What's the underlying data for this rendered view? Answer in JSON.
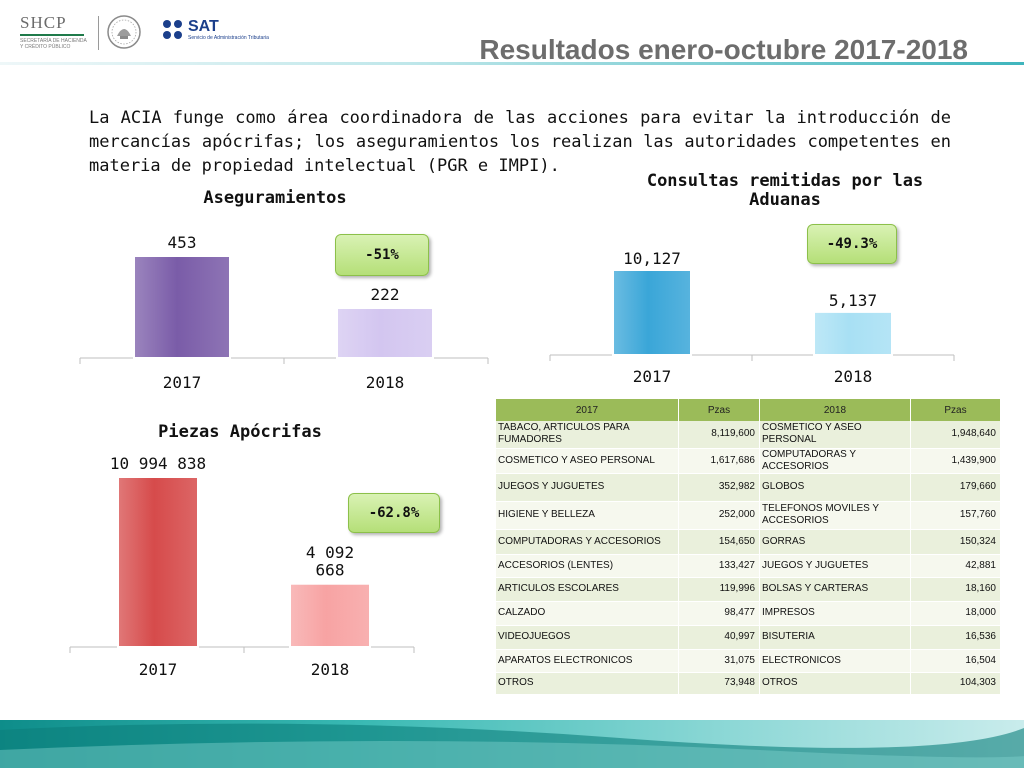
{
  "header": {
    "title": "Resultados enero-octubre 2017-2018",
    "shcp_logo": {
      "word": "SHCP",
      "line1": "SECRETARÍA DE HACIENDA",
      "line2": "Y CRÉDITO PÚBLICO"
    },
    "sat_logo": {
      "word": "SAT",
      "subtitle": "Servicio de Administración Tributaria"
    }
  },
  "intro_text": "La ACIA funge como área coordinadora de las acciones para evitar la introducción de mercancías apócrifas; los aseguramientos los realizan las autoridades competentes en materia de propiedad intelectual (PGR e IMPI).",
  "colors": {
    "bar_purple_2017": "#7a5ca8",
    "bar_purple_2018": "#d3c6f0",
    "bar_blue_2017": "#3aa6d8",
    "bar_blue_2018": "#a8e0f4",
    "bar_red_2017": "#d64b4b",
    "bar_red_2018": "#f7a3a3",
    "badge_green": "#b5df78",
    "table_header": "#9bbb59",
    "footer_teal": "#0e8d8a"
  },
  "chart_data": [
    {
      "type": "bar",
      "title": "Aseguramientos",
      "categories": [
        "2017",
        "2018"
      ],
      "values": [
        453,
        222
      ],
      "value_labels": [
        "453",
        "222"
      ],
      "change_badge": "-51%",
      "grid": false
    },
    {
      "type": "bar",
      "title": "Consultas remitidas por las Aduanas",
      "categories": [
        "2017",
        "2018"
      ],
      "values": [
        10127,
        5137
      ],
      "value_labels": [
        "10,127",
        "5,137"
      ],
      "change_badge": "-49.3%",
      "grid": false
    },
    {
      "type": "bar",
      "title": "Piezas Apócrifas",
      "categories": [
        "2017",
        "2018"
      ],
      "values": [
        10994838,
        4092668
      ],
      "value_labels": [
        "10 994 838",
        "4 092 668"
      ],
      "change_badge": "-62.8%",
      "grid": false
    },
    {
      "type": "table",
      "columns": [
        "2017",
        "Pzas",
        "2018",
        "Pzas"
      ],
      "rows": [
        [
          "TABACO, ARTICULOS PARA FUMADORES",
          "8,119,600",
          "COSMETICO Y ASEO PERSONAL",
          "1,948,640"
        ],
        [
          "COSMETICO Y ASEO PERSONAL",
          "1,617,686",
          "COMPUTADORAS Y ACCESORIOS",
          "1,439,900"
        ],
        [
          "JUEGOS Y JUGUETES",
          "352,982",
          "GLOBOS",
          "179,660"
        ],
        [
          "HIGIENE Y BELLEZA",
          "252,000",
          "TELEFONOS MOVILES Y ACCESORIOS",
          "157,760"
        ],
        [
          "COMPUTADORAS Y ACCESORIOS",
          "154,650",
          "GORRAS",
          "150,324"
        ],
        [
          "ACCESORIOS (LENTES)",
          "133,427",
          "JUEGOS Y JUGUETES",
          "42,881"
        ],
        [
          "ARTICULOS ESCOLARES",
          "119,996",
          "BOLSAS Y CARTERAS",
          "18,160"
        ],
        [
          "CALZADO",
          "98,477",
          "IMPRESOS",
          "18,000"
        ],
        [
          "VIDEOJUEGOS",
          "40,997",
          "BISUTERIA",
          "16,536"
        ],
        [
          "APARATOS ELECTRONICOS",
          "31,075",
          "ELECTRONICOS",
          "16,504"
        ],
        [
          "OTROS",
          "73,948",
          "OTROS",
          "104,303"
        ]
      ]
    }
  ]
}
